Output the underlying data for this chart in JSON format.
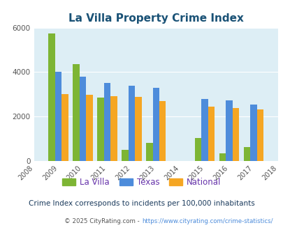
{
  "title": "La Villa Property Crime Index",
  "all_years": [
    2008,
    2009,
    2010,
    2011,
    2012,
    2013,
    2014,
    2015,
    2016,
    2017,
    2018
  ],
  "data_years": [
    2009,
    2010,
    2011,
    2012,
    2013,
    2015,
    2016,
    2017
  ],
  "la_villa": [
    5750,
    4350,
    2850,
    500,
    830,
    1050,
    350,
    620
  ],
  "texas": [
    4000,
    3800,
    3500,
    3400,
    3280,
    2800,
    2720,
    2550
  ],
  "national": [
    3020,
    2970,
    2900,
    2870,
    2700,
    2440,
    2390,
    2330
  ],
  "la_villa_color": "#7db534",
  "texas_color": "#4d8cdb",
  "national_color": "#f5a623",
  "bg_color": "#ddeef5",
  "ylim": [
    0,
    6000
  ],
  "yticks": [
    0,
    2000,
    4000,
    6000
  ],
  "bar_width": 0.27,
  "grid_color": "#ffffff",
  "subtitle": "Crime Index corresponds to incidents per 100,000 inhabitants",
  "footer_text": "© 2025 CityRating.com - ",
  "footer_url": "https://www.cityrating.com/crime-statistics/",
  "title_color": "#1a5276",
  "subtitle_color": "#1a3a5c",
  "footer_color": "#555555",
  "footer_url_color": "#4d8cdb",
  "legend_label_color": "#6633aa"
}
